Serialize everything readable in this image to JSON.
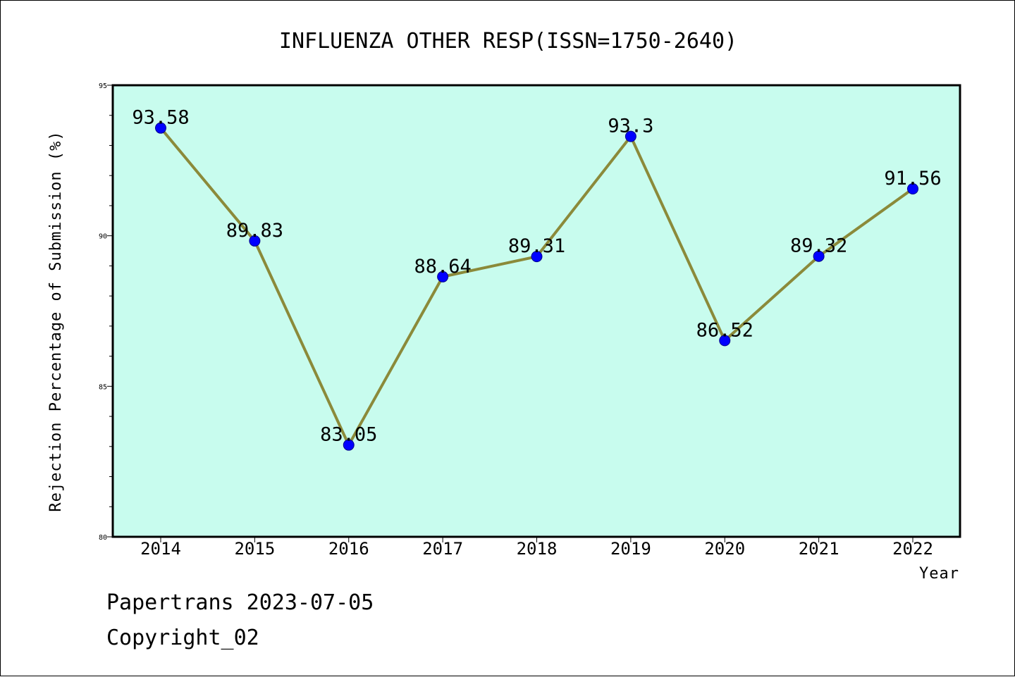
{
  "chart_data": {
    "type": "line",
    "title": "INFLUENZA OTHER RESP(ISSN=1750-2640)",
    "xlabel": "Year",
    "ylabel": "Rejection Percentage of Submission (%)",
    "categories": [
      "2014",
      "2015",
      "2016",
      "2017",
      "2018",
      "2019",
      "2020",
      "2021",
      "2022"
    ],
    "values": [
      93.58,
      89.83,
      83.05,
      88.64,
      89.31,
      93.3,
      86.52,
      89.32,
      91.56
    ],
    "data_labels": [
      "93.58",
      "89.83",
      "83.05",
      "88.64",
      "89.31",
      "93.3",
      "86.52",
      "89.32",
      "91.56"
    ],
    "ylim": [
      80,
      95
    ],
    "y_ticks": [
      "80",
      "85",
      "90",
      "95"
    ],
    "y_tick_values": [
      80,
      85,
      90,
      95
    ],
    "grid": false,
    "legend": "none",
    "colors": {
      "plot_background": "#c8fcee",
      "line": "#8b8a3a",
      "marker_fill": "#0000ff",
      "marker_edge": "#00008b",
      "axes": "#000000"
    }
  },
  "footer": {
    "line1": "Papertrans 2023-07-05",
    "line2": "Copyright_02"
  }
}
